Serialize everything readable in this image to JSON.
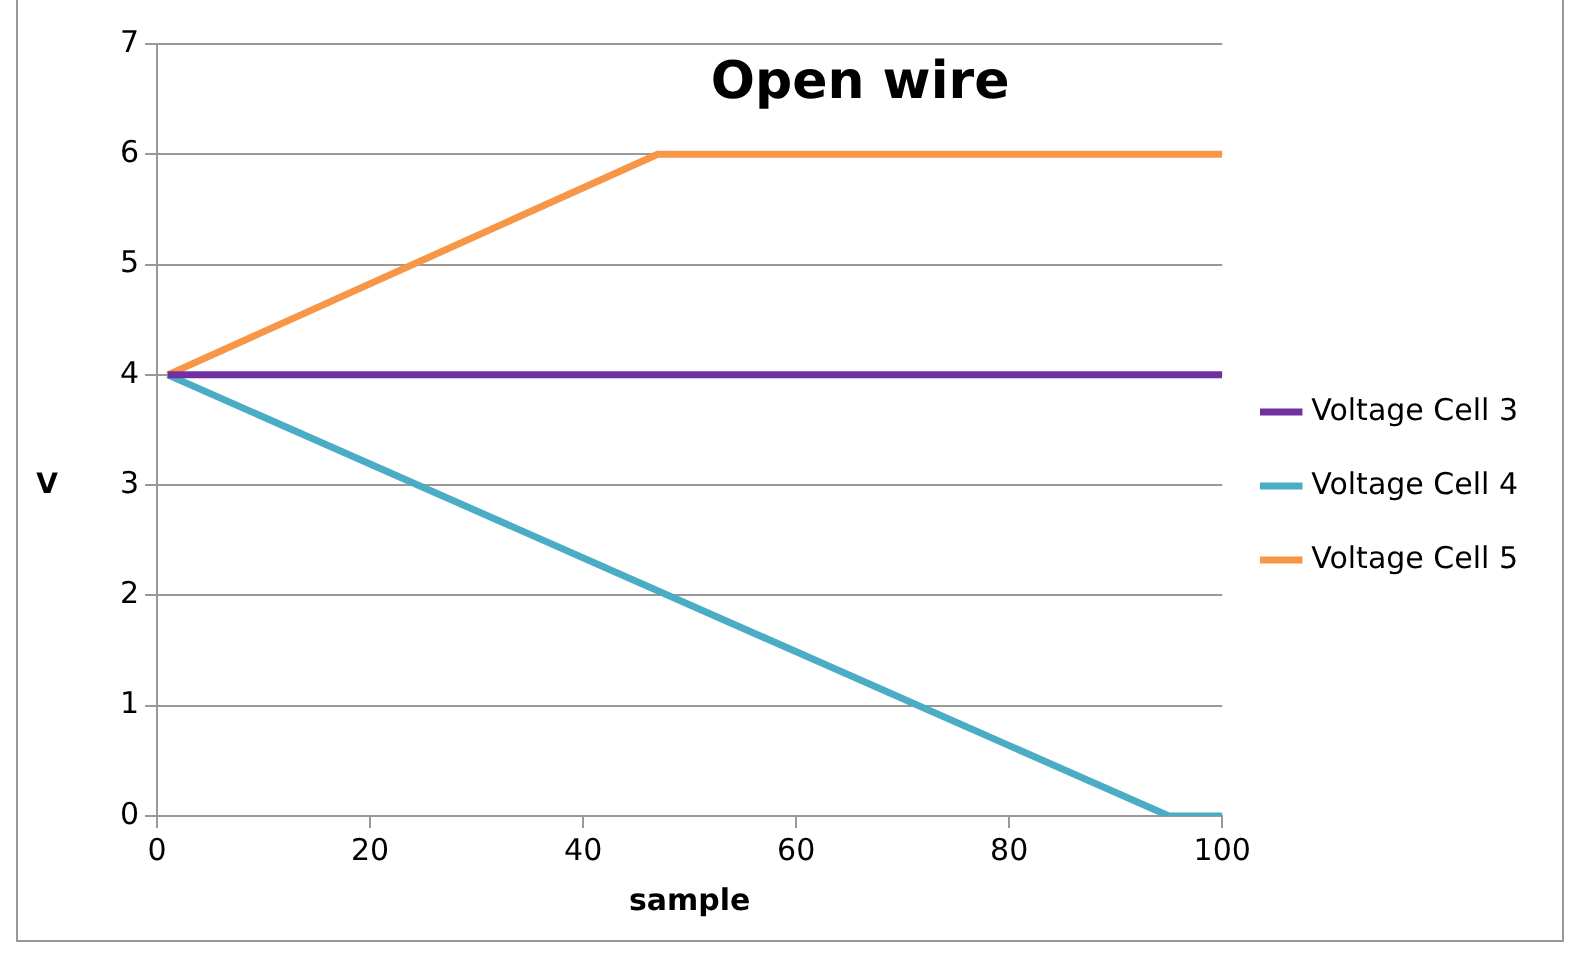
{
  "chart_data": {
    "type": "line",
    "title": "Open wire",
    "xlabel": "sample",
    "ylabel": "V",
    "xlim": [
      0,
      100
    ],
    "xticks": [
      0,
      20,
      40,
      60,
      80,
      100
    ],
    "ylim": [
      0,
      7
    ],
    "yticks": [
      0,
      1,
      2,
      3,
      4,
      5,
      6,
      7
    ],
    "grid": "y",
    "legend": "right",
    "marker": "none",
    "line_style": "solid",
    "series": [
      {
        "name": "Voltage Cell 3",
        "color": "#7030a0",
        "x": [
          1,
          100
        ],
        "values": [
          4,
          4
        ]
      },
      {
        "name": "Voltage Cell 4",
        "color": "#4bacc6",
        "x": [
          1,
          95,
          100
        ],
        "values": [
          4,
          0,
          0
        ]
      },
      {
        "name": "Voltage Cell 5",
        "color": "#f79646",
        "x": [
          1,
          47,
          100
        ],
        "values": [
          4,
          6,
          6
        ]
      }
    ]
  }
}
